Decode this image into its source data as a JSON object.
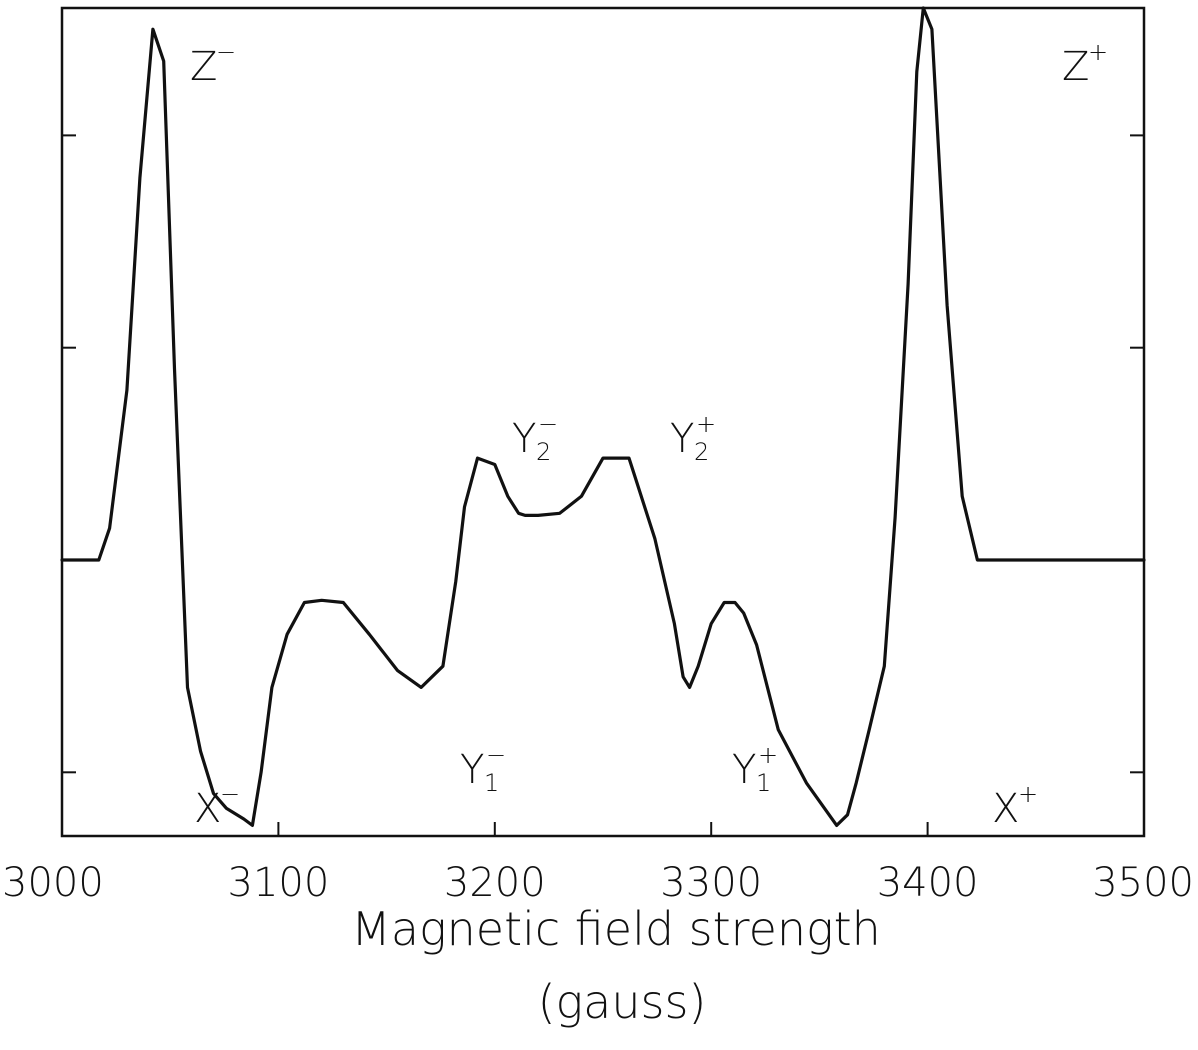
{
  "chart_data": {
    "type": "line",
    "title": "",
    "xlabel": "Magnetic field strength",
    "xlabel_unit": "(gauss)",
    "ylabel": "",
    "xlim": [
      3000,
      3500
    ],
    "ylim": [
      -1.3,
      2.6
    ],
    "x_ticks": [
      3000,
      3100,
      3200,
      3300,
      3400,
      3500
    ],
    "x_tick_labels": [
      "3000",
      "3100",
      "3200",
      "3300",
      "3400",
      "3500"
    ],
    "y_ticks": [
      -1,
      0,
      1,
      2
    ],
    "grid": false,
    "legend": "none",
    "series": [
      {
        "x": [
          3000,
          3017,
          3022,
          3030,
          3036,
          3042,
          3047,
          3052,
          3058,
          3064,
          3070,
          3076,
          3084,
          3088,
          3092,
          3097,
          3104,
          3112,
          3120,
          3130,
          3142,
          3155,
          3166,
          3176,
          3182,
          3186,
          3192,
          3200,
          3206,
          3211,
          3214,
          3220,
          3230,
          3240,
          3250,
          3262,
          3274,
          3283,
          3287,
          3290,
          3294,
          3300,
          3306,
          3311,
          3315,
          3321,
          3331,
          3344,
          3358,
          3363,
          3367,
          3373,
          3380,
          3385,
          3391,
          3395,
          3398,
          3402,
          3409,
          3416,
          3423,
          3430,
          3437,
          3443,
          3449,
          3454,
          3460,
          3466,
          3472,
          3479,
          3484,
          3500
        ],
        "y": [
          0,
          0,
          0.15,
          0.8,
          1.8,
          2.5,
          2.35,
          0.9,
          -0.6,
          -0.9,
          -1.1,
          -1.17,
          -1.22,
          -1.25,
          -1.0,
          -0.6,
          -0.35,
          -0.2,
          -0.19,
          -0.2,
          -0.35,
          -0.52,
          -0.6,
          -0.5,
          -0.1,
          0.25,
          0.48,
          0.45,
          0.3,
          0.22,
          0.21,
          0.21,
          0.22,
          0.3,
          0.48,
          0.48,
          0.1,
          -0.3,
          -0.55,
          -0.6,
          -0.5,
          -0.3,
          -0.2,
          -0.2,
          -0.25,
          -0.4,
          -0.8,
          -1.05,
          -1.25,
          -1.2,
          -1.05,
          -0.8,
          -0.5,
          0.2,
          1.3,
          2.3,
          2.6,
          2.5,
          1.2,
          0.3,
          0,
          0,
          0,
          0,
          0,
          0,
          0,
          0,
          0,
          0,
          0,
          0
        ]
      }
    ]
  },
  "peak_labels": [
    {
      "base": "Z",
      "sup": "−",
      "sub": ""
    },
    {
      "base": "Z",
      "sup": "+",
      "sub": ""
    },
    {
      "base": "X",
      "sup": "−",
      "sub": ""
    },
    {
      "base": "X",
      "sup": "+",
      "sub": ""
    },
    {
      "base": "Y",
      "sup": "−",
      "sub": "2"
    },
    {
      "base": "Y",
      "sup": "+",
      "sub": "2"
    },
    {
      "base": "Y",
      "sup": "−",
      "sub": "1"
    },
    {
      "base": "Y",
      "sup": "+",
      "sub": "1"
    }
  ]
}
